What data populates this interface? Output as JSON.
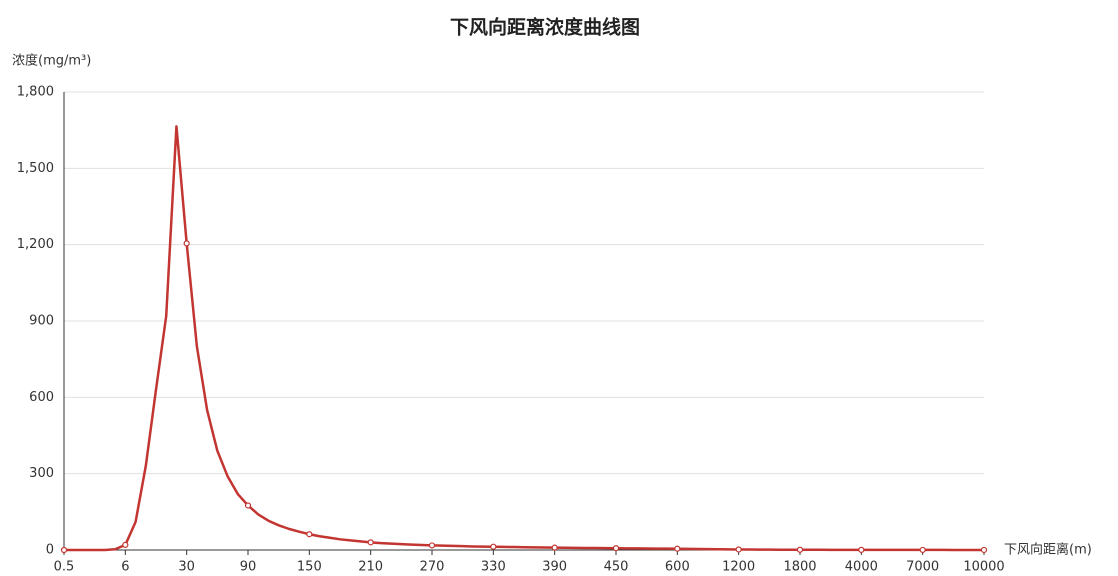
{
  "chart_data": {
    "type": "line",
    "title": "下风向距离浓度曲线图",
    "y_label": "浓度(mg/m³)",
    "x_label": "下风向距离(m)",
    "categories": [
      "0.5",
      null,
      null,
      null,
      null,
      null,
      "6",
      null,
      null,
      null,
      null,
      null,
      "30",
      null,
      null,
      null,
      null,
      null,
      "90",
      null,
      null,
      null,
      null,
      null,
      "150",
      null,
      null,
      null,
      null,
      null,
      "210",
      null,
      null,
      null,
      null,
      null,
      "270",
      null,
      null,
      null,
      null,
      null,
      "330",
      null,
      null,
      null,
      null,
      null,
      "390",
      null,
      null,
      null,
      null,
      null,
      "450",
      null,
      null,
      null,
      null,
      null,
      "600",
      null,
      null,
      null,
      null,
      null,
      "1200",
      null,
      null,
      null,
      null,
      null,
      "1800",
      null,
      null,
      null,
      null,
      null,
      "4000",
      null,
      null,
      null,
      null,
      null,
      "7000",
      null,
      null,
      null,
      null,
      null,
      "10000"
    ],
    "series": [
      {
        "name": "浓度",
        "color": "#c23531",
        "values": [
          0,
          0,
          0,
          0,
          0,
          3,
          20,
          110,
          330,
          630,
          920,
          1665,
          1205,
          800,
          550,
          390,
          290,
          220,
          175,
          140,
          115,
          97,
          83,
          72,
          62,
          54,
          48,
          42,
          38,
          34,
          30,
          27,
          25,
          23,
          21,
          19.5,
          18,
          17,
          16,
          15,
          14,
          13.5,
          13,
          12.3,
          11.6,
          11,
          10.4,
          9.8,
          9.3,
          8.9,
          8.5,
          8.1,
          7.7,
          7.4,
          7,
          6.6,
          6.2,
          5.9,
          5.6,
          5.3,
          5,
          4.5,
          4,
          3.5,
          3,
          2.5,
          2,
          1.8,
          1.6,
          1.4,
          1.2,
          1.1,
          1,
          0.9,
          0.8,
          0.7,
          0.65,
          0.6,
          0.5,
          0.47,
          0.44,
          0.4,
          0.37,
          0.34,
          0.3,
          0.28,
          0.26,
          0.24,
          0.22,
          0.21,
          0.2
        ]
      }
    ],
    "ylim": [
      0,
      1800
    ],
    "yticks": [
      0,
      300,
      600,
      900,
      {
        "value": 1200,
        "label": "1,200"
      },
      {
        "value": 1500,
        "label": "1,500"
      },
      {
        "value": 1800,
        "label": "1,800"
      }
    ],
    "grid": true
  }
}
